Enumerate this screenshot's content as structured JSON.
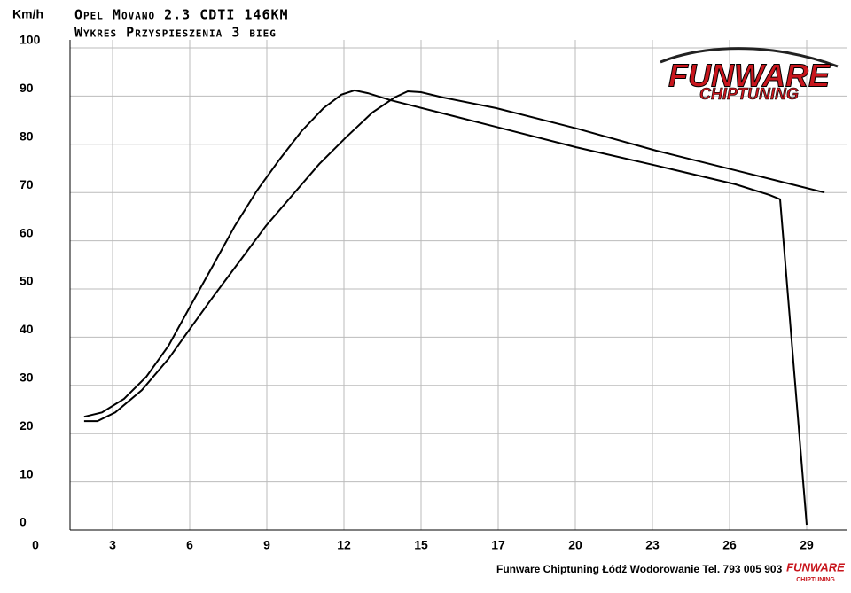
{
  "chart_data": {
    "type": "line",
    "title": "Opel Movano 2.3 CDTI 146KM",
    "subtitle": "Wykres Przyspieszenia 3 bieg",
    "y_label": "Km/h",
    "footer": "Funware Chiptuning Łódź Wodorowanie Tel. 793 005 903",
    "logo": {
      "name": "FUNWARE",
      "tagline": "CHIPTUNING"
    },
    "grid": true,
    "xlim": [
      0,
      30.5
    ],
    "xticks": [
      0,
      {
        "value": 2.9,
        "label": "3"
      },
      {
        "value": 5.8,
        "label": "6"
      },
      {
        "value": 8.7,
        "label": "9"
      },
      {
        "value": 11.6,
        "label": "12"
      },
      {
        "value": 14.5,
        "label": "15"
      },
      {
        "value": 17.4,
        "label": "17"
      },
      {
        "value": 20.3,
        "label": "20"
      },
      {
        "value": 23.2,
        "label": "23"
      },
      {
        "value": 26.1,
        "label": "26"
      },
      {
        "value": 29,
        "label": "29"
      }
    ],
    "ylim": [
      0,
      100
    ],
    "yticks": [
      0,
      10,
      20,
      30,
      40,
      50,
      60,
      70,
      80,
      90,
      100
    ],
    "series": [
      {
        "color": "#000000",
        "x": [
          1.83,
          2.5,
          3.33,
          4.17,
          5.0,
          5.83,
          6.67,
          7.5,
          8.33,
          9.17,
          10.0,
          10.83,
          11.5,
          12.0,
          12.5,
          13.33,
          15.33,
          17.33,
          20.33,
          23.33,
          26.33,
          27.6,
          28.0,
          29.0
        ],
        "values": [
          23.5,
          24.4,
          27.2,
          31.8,
          38.2,
          46.5,
          54.8,
          63.1,
          70.4,
          76.8,
          82.7,
          87.5,
          90.3,
          91.2,
          90.6,
          89.2,
          86.4,
          83.6,
          79.4,
          75.6,
          71.7,
          69.5,
          68.6,
          1.1
        ]
      },
      {
        "color": "#000000",
        "x": [
          1.83,
          2.33,
          3.0,
          4.0,
          5.0,
          5.83,
          6.67,
          7.67,
          8.67,
          9.67,
          10.67,
          11.67,
          12.67,
          13.5,
          14.0,
          14.5,
          15.33,
          17.33,
          20.33,
          23.33,
          26.33,
          29.67
        ],
        "values": [
          22.6,
          22.6,
          24.4,
          29.0,
          35.5,
          41.9,
          48.3,
          55.7,
          63.1,
          69.5,
          75.9,
          81.4,
          86.6,
          89.7,
          91.0,
          90.8,
          89.7,
          87.5,
          83.3,
          78.7,
          74.6,
          70.0
        ]
      }
    ]
  }
}
